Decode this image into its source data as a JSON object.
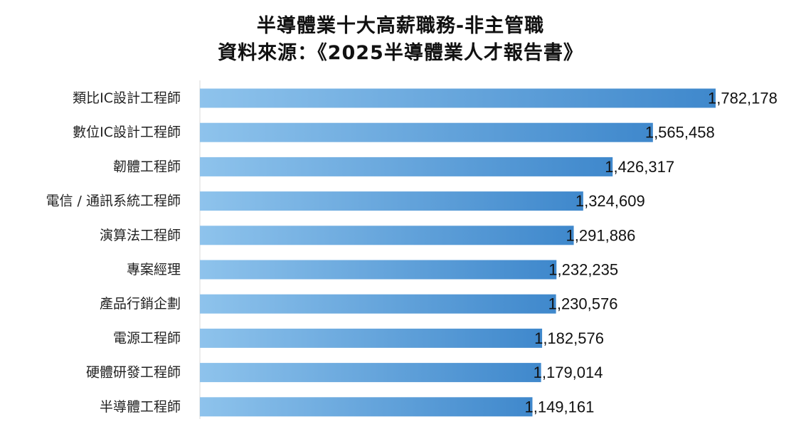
{
  "chart_data": {
    "type": "bar",
    "orientation": "horizontal",
    "title": "半導體業十大高薪職務-非主管職",
    "subtitle": "資料來源：《2025半導體業人才報告書》",
    "categories": [
      "類比IC設計工程師",
      "數位IC設計工程師",
      "韌體工程師",
      "電信 / 通訊系統工程師",
      "演算法工程師",
      "專案經理",
      "產品行銷企劃",
      "電源工程師",
      "硬體研發工程師",
      "半導體工程師"
    ],
    "values": [
      1782178,
      1565458,
      1426317,
      1324609,
      1291886,
      1232235,
      1230576,
      1182576,
      1179014,
      1149161
    ],
    "value_labels": [
      "1,782,178",
      "1,565,458",
      "1,426,317",
      "1,324,609",
      "1,291,886",
      "1,232,235",
      "1,230,576",
      "1,182,576",
      "1,179,014",
      "1,149,161"
    ],
    "xlim": [
      0,
      1782178
    ],
    "xlabel": "",
    "ylabel": "",
    "grid": false,
    "legend": "none",
    "bar_gradient": [
      "#8ec3ec",
      "#3f88cc"
    ]
  }
}
